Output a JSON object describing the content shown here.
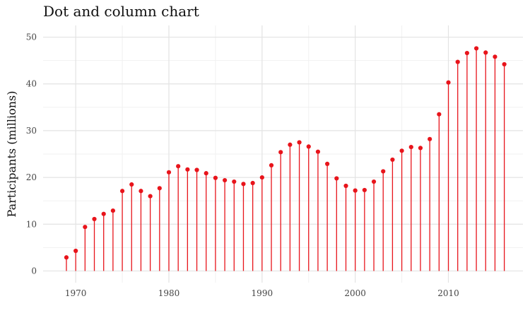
{
  "chart_data": {
    "type": "lollipop",
    "title": "Dot and column chart",
    "xlabel": "",
    "ylabel": "Participants (millions)",
    "xlim": [
      1966.5,
      2018
    ],
    "ylim": [
      -2.5,
      52.5
    ],
    "x_ticks": [
      1970,
      1980,
      1990,
      2000,
      2010
    ],
    "y_ticks": [
      0,
      10,
      20,
      30,
      40,
      50
    ],
    "grid": true,
    "color": "#e8141b",
    "x": [
      1969,
      1970,
      1971,
      1972,
      1973,
      1974,
      1975,
      1976,
      1977,
      1978,
      1979,
      1980,
      1981,
      1982,
      1983,
      1984,
      1985,
      1986,
      1987,
      1988,
      1989,
      1990,
      1991,
      1992,
      1993,
      1994,
      1995,
      1996,
      1997,
      1998,
      1999,
      2000,
      2001,
      2002,
      2003,
      2004,
      2005,
      2006,
      2007,
      2008,
      2009,
      2010,
      2011,
      2012,
      2013,
      2014,
      2015,
      2016
    ],
    "values": [
      2.9,
      4.3,
      9.4,
      11.1,
      12.2,
      12.9,
      17.1,
      18.5,
      17.1,
      16.0,
      17.7,
      21.1,
      22.4,
      21.7,
      21.6,
      20.9,
      19.9,
      19.4,
      19.1,
      18.6,
      18.8,
      20.0,
      22.6,
      25.4,
      27.0,
      27.5,
      26.6,
      25.5,
      22.9,
      19.8,
      18.2,
      17.2,
      17.3,
      19.1,
      21.3,
      23.8,
      25.7,
      26.5,
      26.3,
      28.2,
      33.5,
      40.3,
      44.7,
      46.6,
      47.6,
      46.7,
      45.8,
      44.2
    ]
  }
}
